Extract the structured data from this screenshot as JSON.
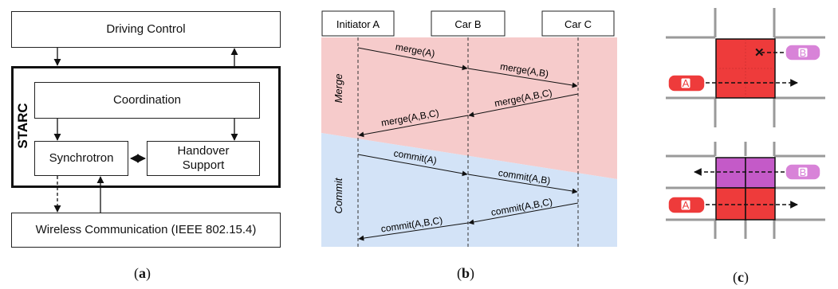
{
  "panel_a": {
    "driving_control": "Driving Control",
    "starc": "STARC",
    "coordination": "Coordination",
    "synchrotron": "Synchrotron",
    "handover_support": "Handover\nSupport",
    "wireless": "Wireless Communication (IEEE 802.15.4)",
    "caption_open": "(",
    "caption_letter": "a",
    "caption_close": ")"
  },
  "panel_b": {
    "participants": [
      "Initiator A",
      "Car B",
      "Car C"
    ],
    "phases": [
      "Merge",
      "Commit"
    ],
    "messages": [
      "merge(A)",
      "merge(A,B)",
      "merge(A,B,C)",
      "merge(A,B,C)",
      "commit(A)",
      "commit(A,B)",
      "commit(A,B,C)",
      "commit(A,B,C)"
    ],
    "caption_letter": "b"
  },
  "panel_c": {
    "car_a_label": "A",
    "car_b_label": "B",
    "caption_letter": "c"
  },
  "colors": {
    "merge_bg": "#f6cbcb",
    "commit_bg": "#d3e3f7",
    "red_car": "#ee3b3b",
    "pink_car": "#d883d8",
    "reserved_red": "#ee3b3b",
    "reserved_purple": "#c45ac8",
    "road_gray": "#9a9a9a"
  }
}
